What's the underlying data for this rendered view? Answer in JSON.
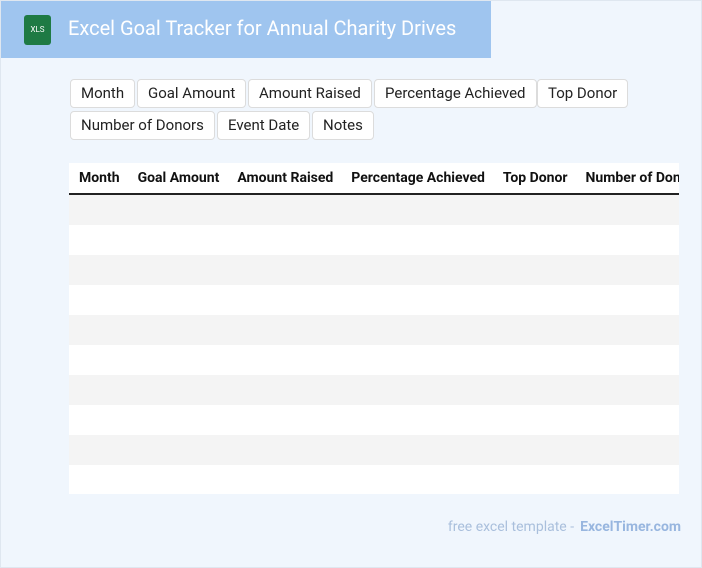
{
  "header": {
    "icon": "XLS",
    "title": "Excel Goal Tracker for Annual Charity Drives"
  },
  "fields": [
    "Month",
    "Goal Amount",
    "Amount Raised",
    "Percentage Achieved",
    "Top Donor",
    "Number of Donors",
    "Event Date",
    "Notes"
  ],
  "table": {
    "columns": [
      "Month",
      "Goal Amount",
      "Amount Raised",
      "Percentage Achieved",
      "Top Donor",
      "Number of Donors"
    ]
  },
  "footer": {
    "text": "free excel template -",
    "link": "ExcelTimer.com"
  }
}
